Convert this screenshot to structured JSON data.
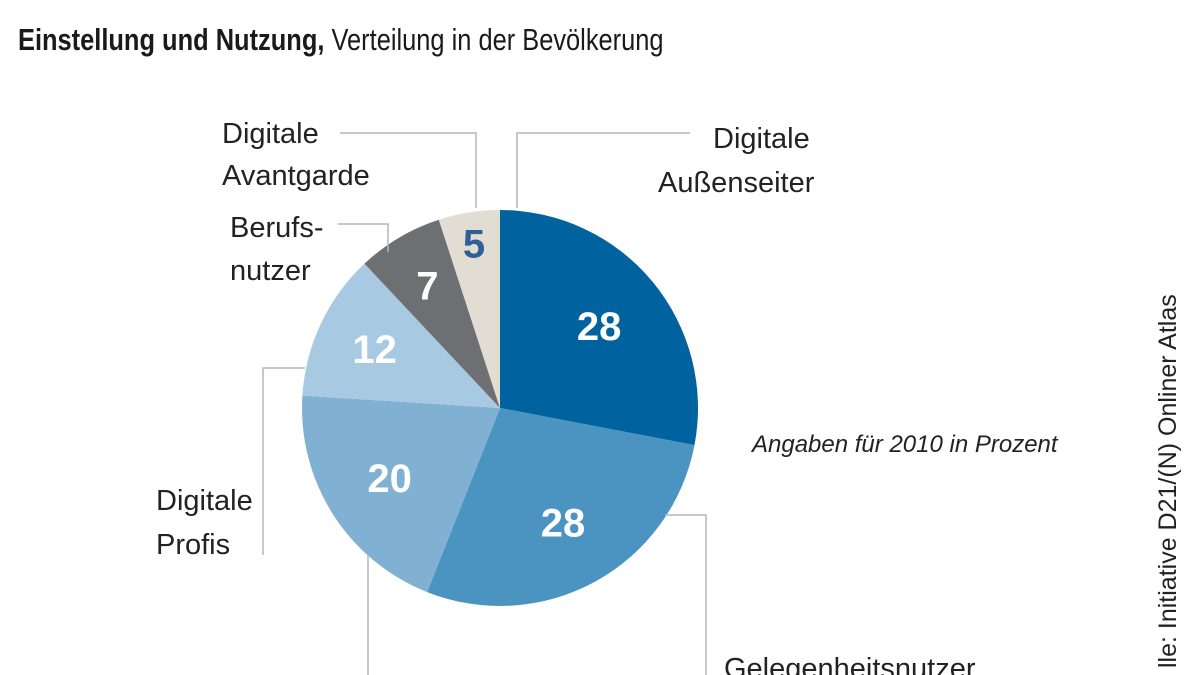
{
  "header": {
    "subtitle_bold": "Einstellung und Nutzung,",
    "subtitle_rest": " Verteilung in der Bevölkerung"
  },
  "chart_data": {
    "type": "pie",
    "title": "Einstellung und Nutzung, Verteilung in der Bevölkerung",
    "note": "Angaben für 2010 in Prozent",
    "source": "lle: Initiative D21/(N) Onliner Atlas",
    "slices": [
      {
        "label_lines": [
          "Digitale",
          "Außenseiter"
        ],
        "value": 28,
        "color": "#00629e",
        "text_color": "#ffffff"
      },
      {
        "label_lines": [
          "Gelegenheitsnutzer"
        ],
        "value": 28,
        "color": "#4b94c1",
        "text_color": "#ffffff"
      },
      {
        "label_lines": [
          "",
          ""
        ],
        "value": 20,
        "color": "#80b1d3",
        "text_color": "#ffffff"
      },
      {
        "label_lines": [
          "Digitale",
          "Profis"
        ],
        "value": 12,
        "color": "#a7c9e1",
        "text_color": "#ffffff"
      },
      {
        "label_lines": [
          "Berufs-",
          "nutzer"
        ],
        "value": 7,
        "color": "#6e6f72",
        "text_color": "#ffffff"
      },
      {
        "label_lines": [
          "Digitale",
          "Avantgarde"
        ],
        "value": 5,
        "color": "#e2ddd2",
        "text_color": "#2e5f95"
      }
    ]
  }
}
